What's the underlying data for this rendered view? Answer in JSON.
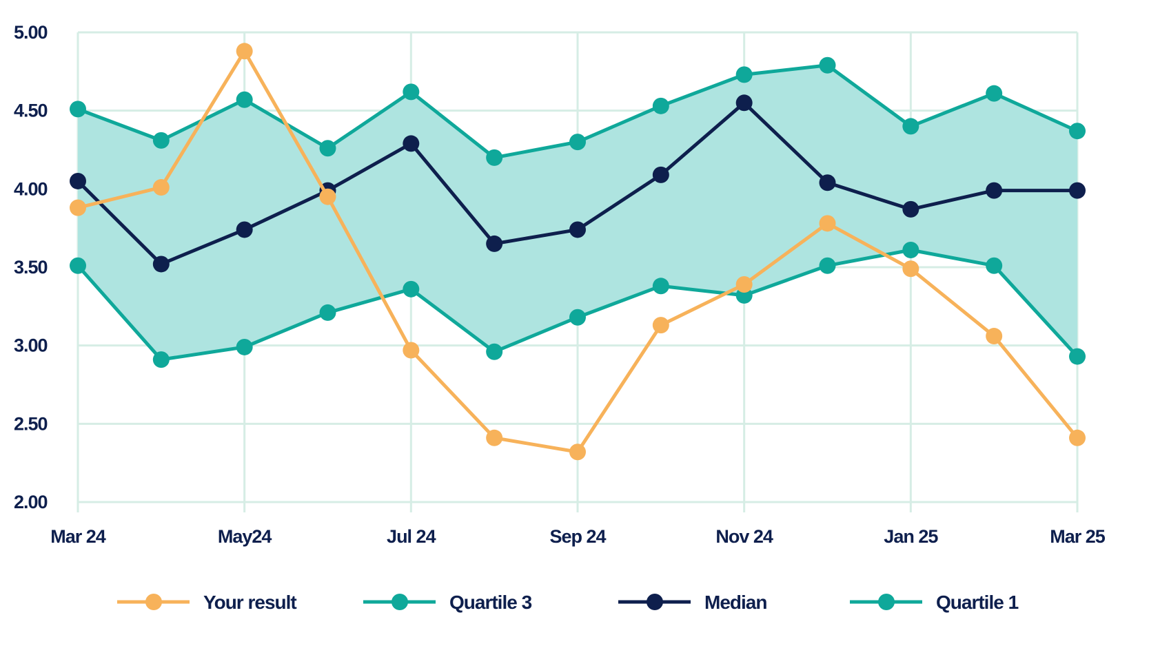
{
  "chart_data": {
    "type": "line",
    "title": "",
    "xlabel": "",
    "ylabel": "",
    "ylim": [
      2.0,
      5.0
    ],
    "yticks": [
      "2.00",
      "2.50",
      "3.00",
      "3.50",
      "4.00",
      "4.50",
      "5.00"
    ],
    "categories": [
      "Mar 24",
      "Apr 24",
      "May 24",
      "Jun 24",
      "Jul 24",
      "Aug 24",
      "Sep 24",
      "Oct 24",
      "Nov 24",
      "Dec 24",
      "Jan 25",
      "Feb 25",
      "Mar 25"
    ],
    "xtick_labels": [
      "Mar 24",
      "",
      "May24",
      "",
      "Jul 24",
      "",
      "Sep 24",
      "",
      "Nov 24",
      "",
      "Jan 25",
      "",
      "Mar 25"
    ],
    "band": {
      "lower": "Quartile 1",
      "upper": "Quartile 3",
      "color": "#aee4e0"
    },
    "series": [
      {
        "name": "Your result",
        "color": "#f7b25a",
        "values": [
          3.88,
          4.01,
          4.88,
          3.95,
          2.97,
          2.41,
          2.32,
          3.13,
          3.39,
          3.78,
          3.49,
          3.06,
          2.41
        ]
      },
      {
        "name": "Quartile 3",
        "color": "#0fa89a",
        "values": [
          4.51,
          4.31,
          4.57,
          4.26,
          4.62,
          4.2,
          4.3,
          4.53,
          4.73,
          4.79,
          4.4,
          4.61,
          4.37
        ]
      },
      {
        "name": "Median",
        "color": "#0e1f4d",
        "values": [
          4.05,
          3.52,
          3.74,
          3.99,
          4.29,
          3.65,
          3.74,
          4.09,
          4.55,
          4.04,
          3.87,
          3.99,
          3.99
        ]
      },
      {
        "name": "Quartile 1",
        "color": "#0fa89a",
        "values": [
          3.51,
          2.91,
          2.99,
          3.21,
          3.36,
          2.96,
          3.18,
          3.38,
          3.32,
          3.51,
          3.61,
          3.51,
          2.93
        ]
      }
    ],
    "legend": "bottom-center",
    "grid": true,
    "grid_color": "#d6ede5"
  }
}
